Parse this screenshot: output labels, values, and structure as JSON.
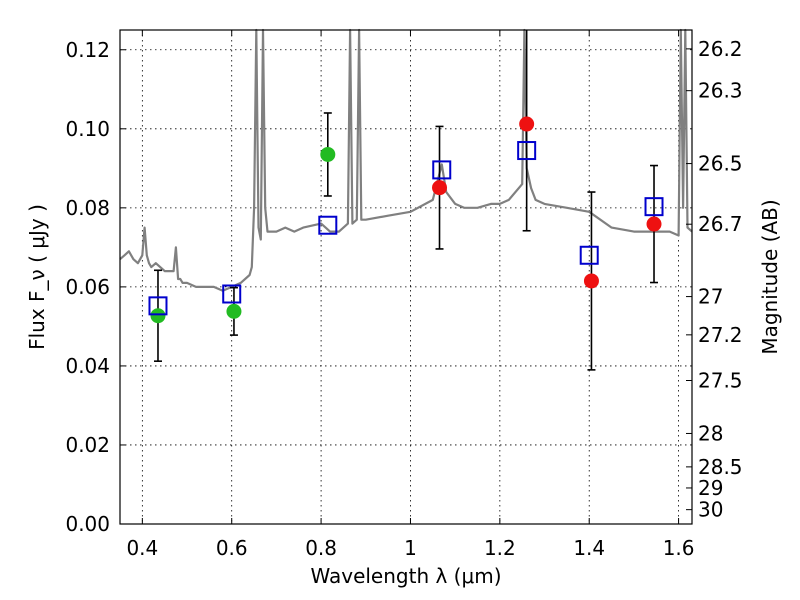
{
  "chart_data": {
    "type": "scatter",
    "title": "",
    "xlabel": "Wavelength  λ (μm)",
    "ylabel": "Flux  F_ν  ( μJy )",
    "y2label": "Magnitude (AB)",
    "xlim": [
      0.35,
      1.63
    ],
    "ylim": [
      0.0,
      0.125
    ],
    "grid": true,
    "x_ticks": [
      {
        "value": 0.4,
        "label": "0.4"
      },
      {
        "value": 0.6,
        "label": "0.6"
      },
      {
        "value": 0.8,
        "label": "0.8"
      },
      {
        "value": 1.0,
        "label": "1"
      },
      {
        "value": 1.2,
        "label": "1.2"
      },
      {
        "value": 1.4,
        "label": "1.4"
      },
      {
        "value": 1.6,
        "label": "1.6"
      }
    ],
    "y_ticks": [
      {
        "value": 0.0,
        "label": "0.00"
      },
      {
        "value": 0.02,
        "label": "0.02"
      },
      {
        "value": 0.04,
        "label": "0.04"
      },
      {
        "value": 0.06,
        "label": "0.06"
      },
      {
        "value": 0.08,
        "label": "0.08"
      },
      {
        "value": 0.1,
        "label": "0.10"
      },
      {
        "value": 0.12,
        "label": "0.12"
      }
    ],
    "y2_ticks": [
      {
        "label": "26.2",
        "value": 26.2
      },
      {
        "label": "26.3",
        "value": 26.3
      },
      {
        "label": "26.5",
        "value": 26.5
      },
      {
        "label": "26.7",
        "value": 26.7
      },
      {
        "label": "27",
        "value": 27
      },
      {
        "label": "27.2",
        "value": 27.2
      },
      {
        "label": "27.5",
        "value": 27.5
      },
      {
        "label": "28",
        "value": 28
      },
      {
        "label": "28.5",
        "value": 28.5
      },
      {
        "label": "29",
        "value": 29
      },
      {
        "label": "30",
        "value": 30
      }
    ],
    "colors": {
      "spectrum": "#808080",
      "optical_points": "#22bb22",
      "nir_points": "#ee1111",
      "model_points": "#0000cc",
      "error_bars": "#000000"
    },
    "series": [
      {
        "kind": "line",
        "x": [
          0.35,
          0.36,
          0.37,
          0.38,
          0.39,
          0.4,
          0.405,
          0.41,
          0.415,
          0.42,
          0.43,
          0.44,
          0.45,
          0.46,
          0.47,
          0.475,
          0.48,
          0.485,
          0.49,
          0.5,
          0.52,
          0.54,
          0.56,
          0.58,
          0.6,
          0.62,
          0.64,
          0.645,
          0.65,
          0.655,
          0.66,
          0.665,
          0.67,
          0.675,
          0.68,
          0.7,
          0.72,
          0.74,
          0.76,
          0.8,
          0.81,
          0.82,
          0.84,
          0.86,
          0.865,
          0.87,
          0.88,
          0.885,
          0.89,
          0.9,
          0.95,
          1.0,
          1.05,
          1.07,
          1.08,
          1.1,
          1.12,
          1.15,
          1.18,
          1.2,
          1.22,
          1.25,
          1.255,
          1.26,
          1.27,
          1.28,
          1.3,
          1.35,
          1.4,
          1.45,
          1.5,
          1.55,
          1.58,
          1.6,
          1.605,
          1.61,
          1.615,
          1.62,
          1.63
        ],
        "y": [
          0.067,
          0.068,
          0.069,
          0.067,
          0.066,
          0.068,
          0.075,
          0.068,
          0.066,
          0.065,
          0.066,
          0.065,
          0.064,
          0.064,
          0.064,
          0.07,
          0.062,
          0.062,
          0.061,
          0.061,
          0.06,
          0.06,
          0.06,
          0.059,
          0.06,
          0.061,
          0.063,
          0.065,
          0.08,
          0.125,
          0.075,
          0.072,
          0.125,
          0.08,
          0.074,
          0.074,
          0.075,
          0.074,
          0.075,
          0.076,
          0.075,
          0.074,
          0.074,
          0.076,
          0.125,
          0.076,
          0.077,
          0.125,
          0.077,
          0.077,
          0.078,
          0.079,
          0.082,
          0.091,
          0.084,
          0.081,
          0.08,
          0.08,
          0.081,
          0.081,
          0.082,
          0.086,
          0.125,
          0.09,
          0.085,
          0.082,
          0.081,
          0.08,
          0.079,
          0.075,
          0.074,
          0.074,
          0.074,
          0.073,
          0.125,
          0.08,
          0.125,
          0.075,
          0.074
        ]
      },
      {
        "kind": "points",
        "marker": "circle",
        "x": [
          0.435,
          0.605,
          0.815
        ],
        "y": [
          0.0527,
          0.0538,
          0.0935
        ],
        "err": [
          0.0115,
          0.006,
          0.0105
        ]
      },
      {
        "kind": "points",
        "marker": "circle",
        "x": [
          1.065,
          1.26,
          1.405,
          1.545
        ],
        "y": [
          0.0851,
          0.1012,
          0.0615,
          0.0759
        ],
        "err": [
          0.0155,
          0.027,
          0.0225,
          0.0148
        ]
      },
      {
        "kind": "points",
        "marker": "open-square",
        "x": [
          0.435,
          0.6,
          0.815,
          1.07,
          1.26,
          1.4,
          1.545
        ],
        "y": [
          0.0552,
          0.0582,
          0.0756,
          0.0896,
          0.0945,
          0.068,
          0.0803
        ]
      }
    ]
  }
}
